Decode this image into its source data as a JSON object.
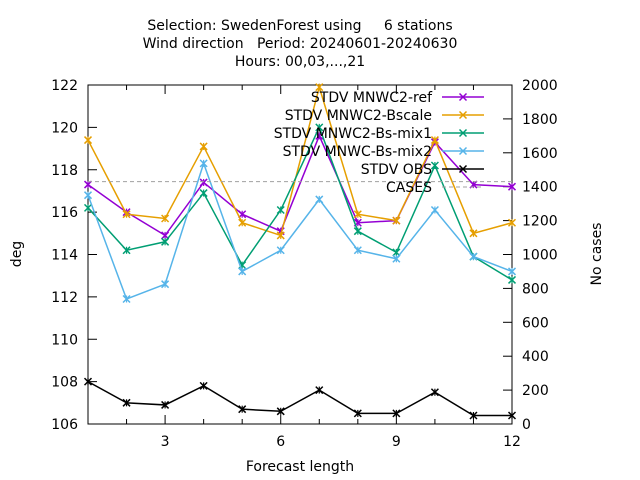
{
  "chart_data": {
    "type": "line",
    "title_lines": [
      "Selection: SwedenForest using     6 stations",
      "Wind direction   Period: 20240601-20240630",
      "Hours: 00,03,...,21"
    ],
    "xlabel": "Forecast length",
    "ylabel": "deg",
    "y2label": "No cases",
    "x": [
      1,
      2,
      3,
      4,
      5,
      6,
      7,
      8,
      9,
      10,
      11,
      12
    ],
    "xlim": [
      1,
      12
    ],
    "ylim": [
      106,
      122
    ],
    "y2lim": [
      0,
      2000
    ],
    "x_ticks": [
      3,
      6,
      9,
      12
    ],
    "y_ticks": [
      106,
      108,
      110,
      112,
      114,
      116,
      118,
      120,
      122
    ],
    "y2_ticks": [
      0,
      200,
      400,
      600,
      800,
      1000,
      1200,
      1400,
      1600,
      1800,
      2000
    ],
    "legend_position": "top-right",
    "series": [
      {
        "name": "STDV MNWC2-ref",
        "color": "#9400d3",
        "axis": "y",
        "marker": "x",
        "values": [
          117.3,
          116.0,
          114.9,
          117.4,
          115.9,
          115.1,
          119.6,
          115.5,
          115.6,
          119.3,
          117.3,
          117.2
        ]
      },
      {
        "name": "STDV MNWC2-Bscale",
        "color": "#e69f00",
        "axis": "y",
        "marker": "x",
        "values": [
          119.4,
          115.9,
          115.7,
          119.1,
          115.5,
          114.9,
          121.9,
          115.9,
          115.6,
          119.4,
          115.0,
          115.5
        ]
      },
      {
        "name": "STDV MNWC2-Bs-mix1",
        "color": "#009e73",
        "axis": "y",
        "marker": "x",
        "values": [
          116.2,
          114.2,
          114.6,
          116.9,
          113.5,
          116.1,
          120.0,
          115.1,
          114.1,
          118.2,
          113.9,
          112.8
        ]
      },
      {
        "name": "STDV MNWC-Bs-mix2",
        "color": "#56b4e9",
        "axis": "y",
        "marker": "x",
        "values": [
          116.8,
          111.9,
          112.6,
          118.3,
          113.2,
          114.2,
          116.6,
          114.2,
          113.8,
          116.1,
          113.9,
          113.2
        ]
      },
      {
        "name": "STDV OBS",
        "color": "#000000",
        "axis": "y",
        "marker": "x",
        "values": [
          108.0,
          107.0,
          106.9,
          107.8,
          106.7,
          106.6,
          107.6,
          106.5,
          106.5,
          107.5,
          106.4,
          106.4
        ]
      },
      {
        "name": "CASES",
        "color": "#a0a0a0",
        "axis": "y2",
        "dashed": true,
        "values": [
          1430,
          1430,
          1430,
          1430,
          1430,
          1430,
          1430,
          1430,
          1430,
          1430,
          1430,
          1430
        ]
      }
    ]
  }
}
